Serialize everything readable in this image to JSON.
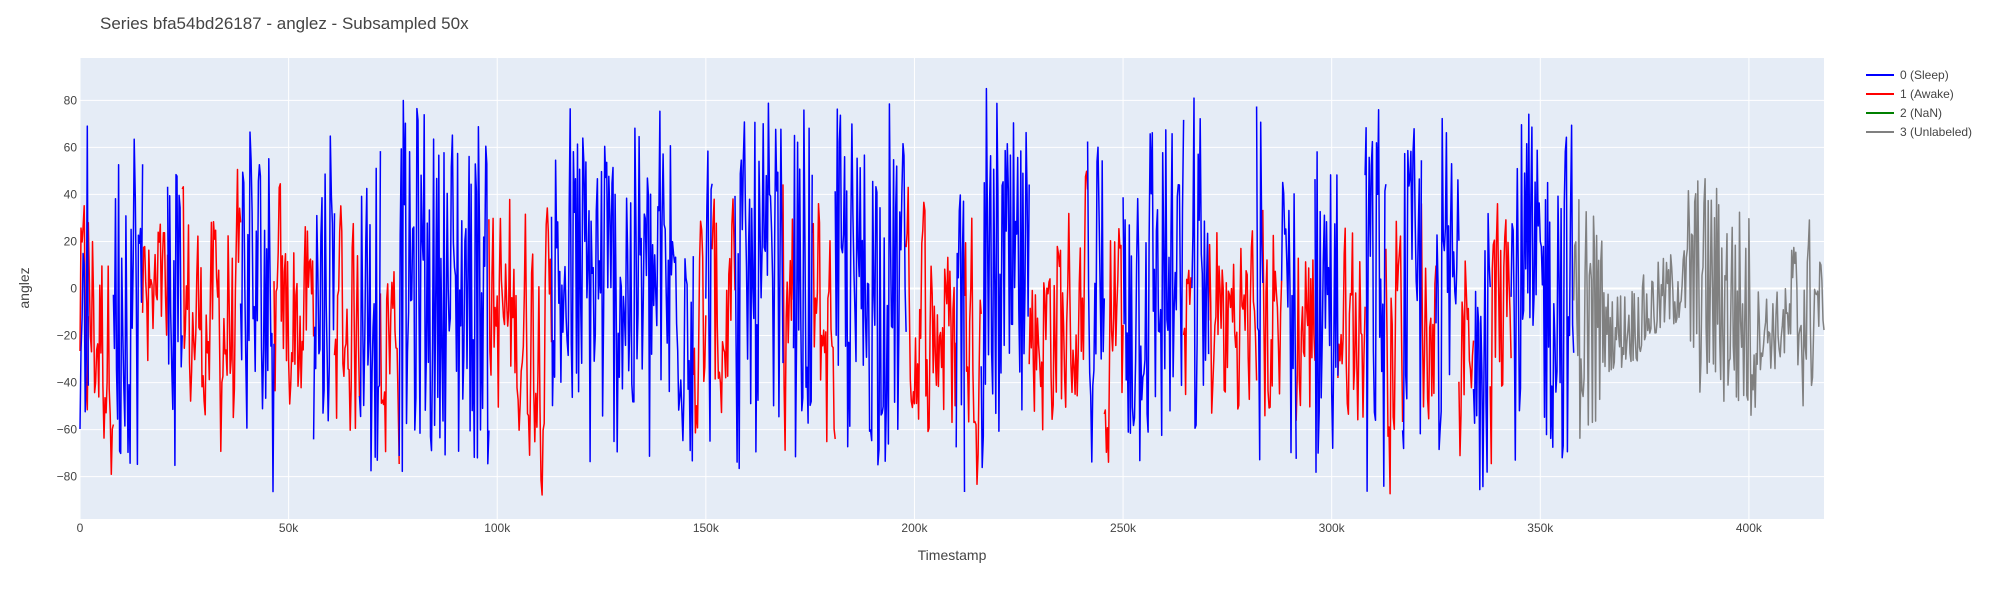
{
  "chart_data": {
    "type": "line",
    "title": "Series bfa54bd26187 - anglez - Subsampled 50x",
    "xlabel": "Timestamp",
    "ylabel": "anglez",
    "xlim": [
      0,
      418000
    ],
    "ylim": [
      -98,
      98
    ],
    "x_ticks": [
      0,
      50000,
      100000,
      150000,
      200000,
      250000,
      300000,
      350000,
      400000
    ],
    "x_tick_labels": [
      "0",
      "50k",
      "100k",
      "150k",
      "200k",
      "250k",
      "300k",
      "350k",
      "400k"
    ],
    "y_ticks": [
      -80,
      -60,
      -40,
      -20,
      0,
      20,
      40,
      60,
      80
    ],
    "y_tick_labels": [
      "−80",
      "−60",
      "−40",
      "−20",
      "0",
      "20",
      "40",
      "60",
      "80"
    ],
    "grid": true,
    "legend_position": "top-right",
    "plot_bgcolor": "#e5ecf6",
    "series": [
      {
        "name": "0 (Sleep)",
        "color": "#0000ff",
        "segments": [
          [
            0,
            2000
          ],
          [
            8000,
            15000
          ],
          [
            21000,
            24500
          ],
          [
            38500,
            46500
          ],
          [
            56000,
            61000
          ],
          [
            67000,
            72000
          ],
          [
            76500,
            98000
          ],
          [
            113000,
            147000
          ],
          [
            150000,
            151500
          ],
          [
            157000,
            168500
          ],
          [
            171000,
            175500
          ],
          [
            181000,
            198000
          ],
          [
            210000,
            212000
          ],
          [
            216000,
            227500
          ],
          [
            241500,
            245500
          ],
          [
            250000,
            264500
          ],
          [
            266500,
            270500
          ],
          [
            282000,
            283500
          ],
          [
            288000,
            291500
          ],
          [
            296000,
            301500
          ],
          [
            308000,
            313000
          ],
          [
            317000,
            321500
          ],
          [
            325000,
            330500
          ],
          [
            334000,
            338000
          ],
          [
            343000,
            358000
          ]
        ],
        "y_range": [
          -88,
          88
        ]
      },
      {
        "name": "1 (Awake)",
        "color": "#ff0000",
        "segments": [
          [
            0,
            2000
          ],
          [
            2000,
            8000
          ],
          [
            15000,
            21000
          ],
          [
            24500,
            38500
          ],
          [
            46500,
            56000
          ],
          [
            61000,
            67000
          ],
          [
            72000,
            76500
          ],
          [
            98000,
            113000
          ],
          [
            147000,
            150000
          ],
          [
            151500,
            157000
          ],
          [
            168500,
            171000
          ],
          [
            175500,
            181000
          ],
          [
            198000,
            210000
          ],
          [
            212000,
            216000
          ],
          [
            227500,
            241500
          ],
          [
            245500,
            250000
          ],
          [
            264500,
            266500
          ],
          [
            270500,
            282000
          ],
          [
            283500,
            288000
          ],
          [
            291500,
            296000
          ],
          [
            301500,
            308000
          ],
          [
            313000,
            317000
          ],
          [
            321500,
            325000
          ],
          [
            330500,
            334000
          ],
          [
            338000,
            343000
          ]
        ],
        "y_range": [
          -88,
          88
        ]
      },
      {
        "name": "2 (NaN)",
        "color": "#008000",
        "segments": []
      },
      {
        "name": "3 (Unlabeled)",
        "color": "#808080",
        "segments": [
          [
            358000,
            418000
          ]
        ],
        "y_range": [
          -82,
          72
        ]
      }
    ]
  }
}
